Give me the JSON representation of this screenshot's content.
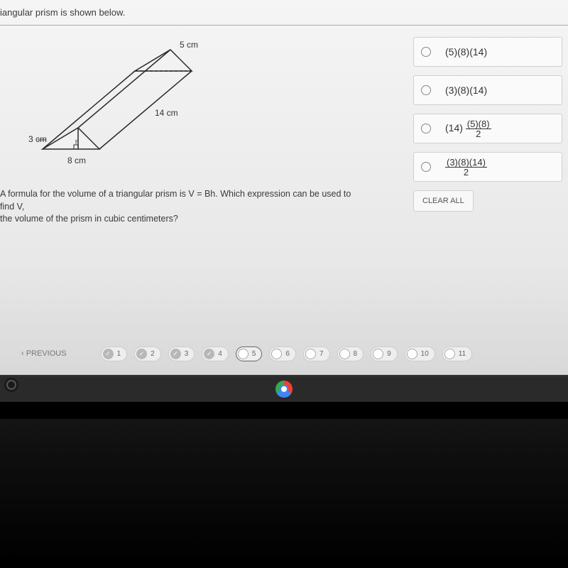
{
  "question": {
    "intro": "iangular prism is shown below.",
    "formula_line1": "A formula for the volume of a triangular prism is V = Bh. Which expression can be used to find V,",
    "formula_line2": "the volume of the prism in cubic centimeters?"
  },
  "diagram": {
    "labels": {
      "top": "5 cm",
      "side": "14 cm",
      "left": "3 cm",
      "bottom": "8 cm",
      "h": "h"
    },
    "stroke": "#2a2a2a",
    "fill": "#f2f2f2"
  },
  "answers": [
    {
      "html": "(5)(8)(14)"
    },
    {
      "html": "(3)(8)(14)"
    },
    {
      "html": "(14) <span class='frac'><span class='num'>(5)(8)</span><span class='den'>2</span></span>"
    },
    {
      "html": "<span class='frac'><span class='num'>(3)(8)(14)</span><span class='den'>2</span></span>"
    }
  ],
  "clear_all": "CLEAR ALL",
  "nav": {
    "previous": "‹  PREVIOUS",
    "pills": [
      {
        "num": "1",
        "done": true
      },
      {
        "num": "2",
        "done": true
      },
      {
        "num": "3",
        "done": true
      },
      {
        "num": "4",
        "done": true
      },
      {
        "num": "5",
        "done": false,
        "current": true
      },
      {
        "num": "6",
        "done": false
      },
      {
        "num": "7",
        "done": false
      },
      {
        "num": "8",
        "done": false
      },
      {
        "num": "9",
        "done": false
      },
      {
        "num": "10",
        "done": false
      },
      {
        "num": "11",
        "done": false
      }
    ]
  }
}
